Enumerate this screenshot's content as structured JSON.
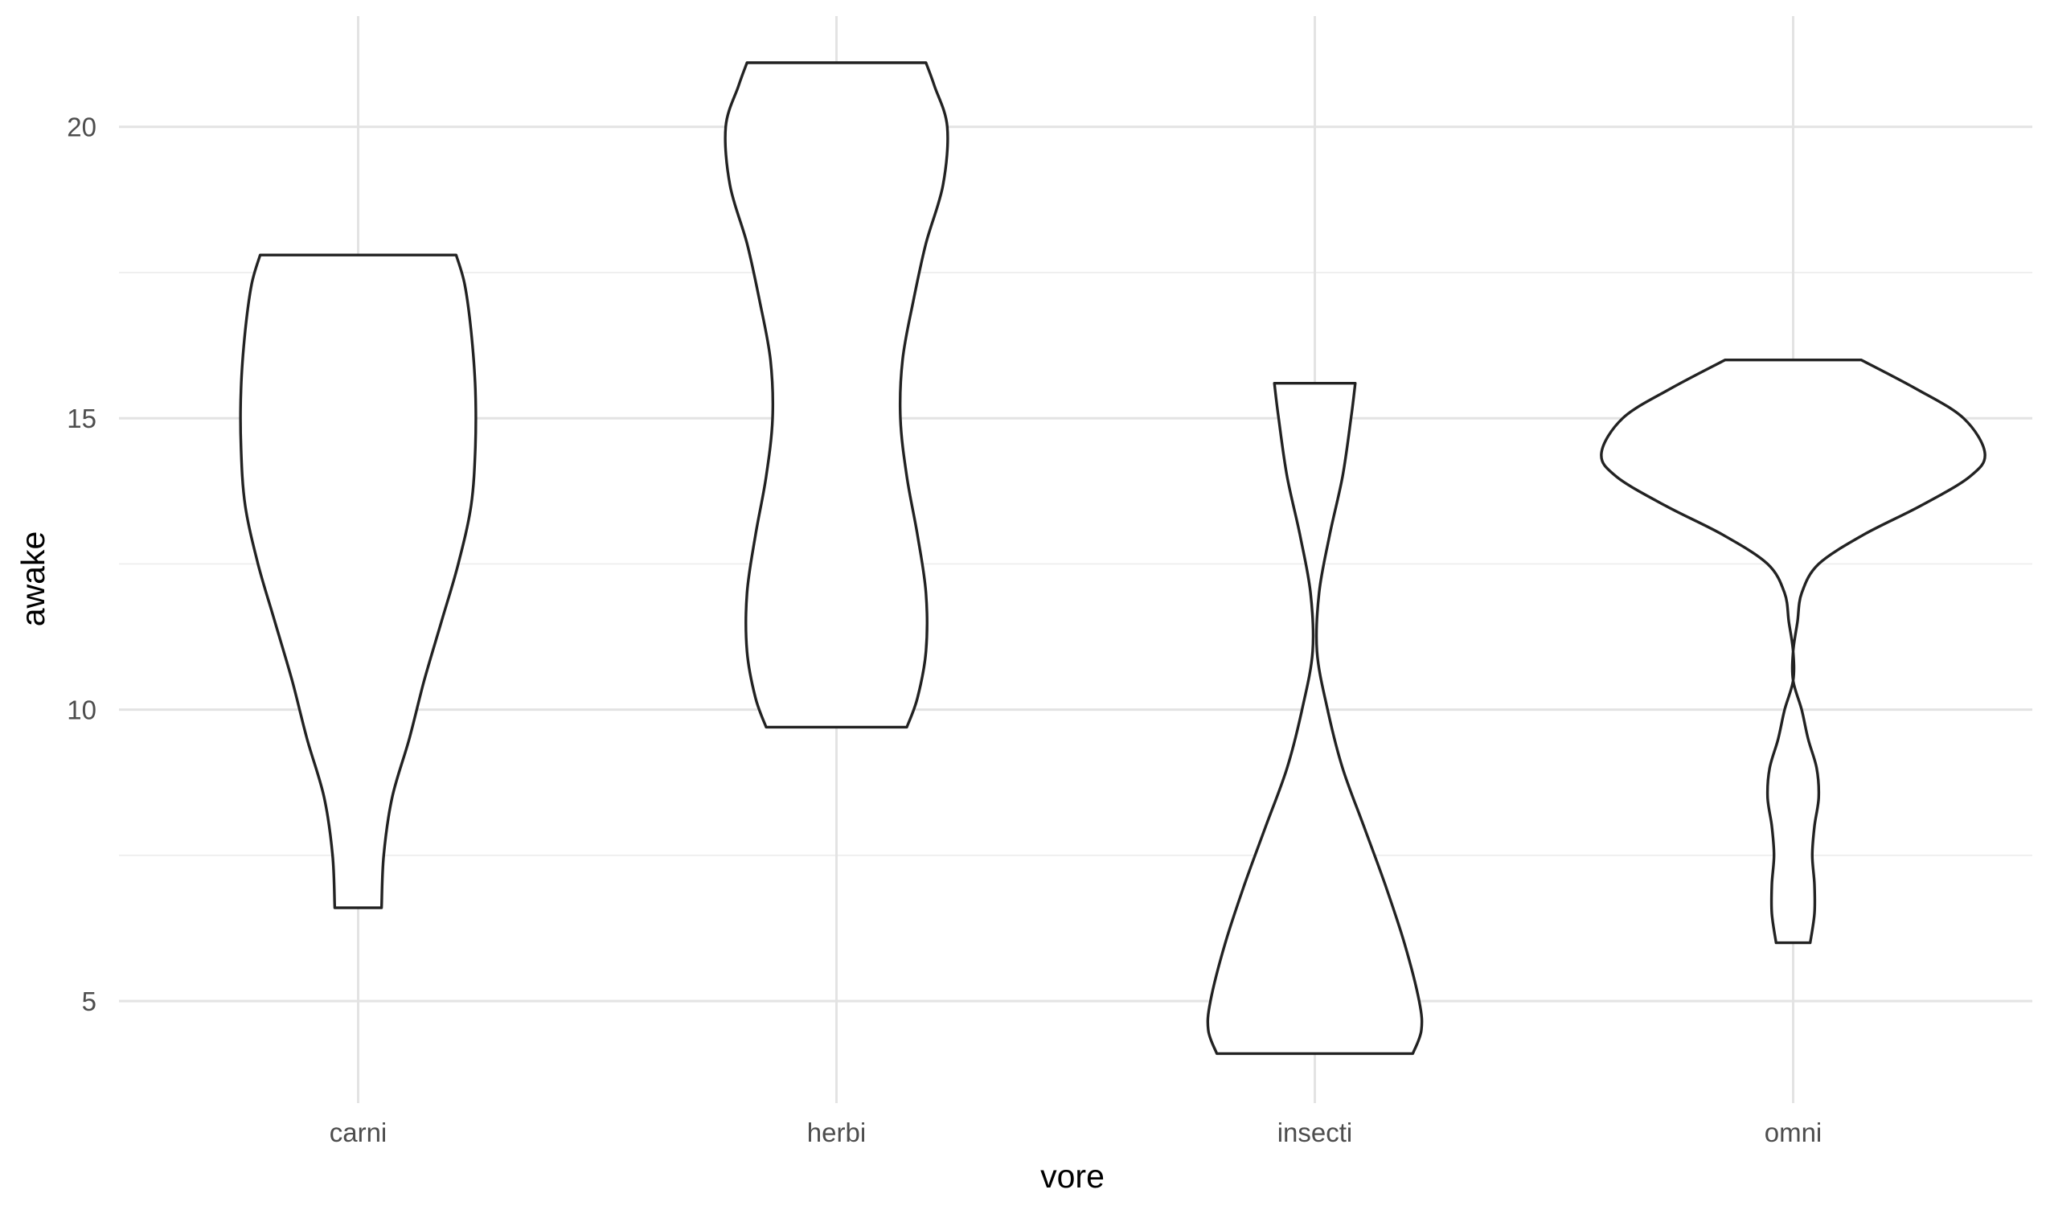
{
  "chart_data": {
    "type": "violin",
    "title": "",
    "xlabel": "vore",
    "ylabel": "awake",
    "categories": [
      "carni",
      "herbi",
      "insecti",
      "omni"
    ],
    "ylim": [
      3.25,
      21.9
    ],
    "yticks": [
      5,
      10,
      15,
      20
    ],
    "yticks_minor": [
      7.5,
      12.5,
      17.5
    ],
    "grid": true,
    "violins": [
      {
        "category": "carni",
        "min": 6.6,
        "max": 17.8,
        "density": [
          [
            6.6,
            0.11
          ],
          [
            7.5,
            0.12
          ],
          [
            8.5,
            0.16
          ],
          [
            9.5,
            0.24
          ],
          [
            10.5,
            0.31
          ],
          [
            11.5,
            0.39
          ],
          [
            12.5,
            0.47
          ],
          [
            13.5,
            0.53
          ],
          [
            14.5,
            0.55
          ],
          [
            15.5,
            0.55
          ],
          [
            16.5,
            0.53
          ],
          [
            17.3,
            0.5
          ],
          [
            17.8,
            0.46
          ]
        ]
      },
      {
        "category": "herbi",
        "min": 9.7,
        "max": 21.1,
        "density": [
          [
            9.7,
            0.33
          ],
          [
            10.2,
            0.38
          ],
          [
            11.0,
            0.42
          ],
          [
            12.0,
            0.42
          ],
          [
            13.0,
            0.38
          ],
          [
            14.0,
            0.33
          ],
          [
            15.0,
            0.3
          ],
          [
            16.0,
            0.31
          ],
          [
            17.0,
            0.36
          ],
          [
            18.0,
            0.42
          ],
          [
            19.0,
            0.5
          ],
          [
            20.0,
            0.52
          ],
          [
            20.7,
            0.46
          ],
          [
            21.1,
            0.42
          ]
        ]
      },
      {
        "category": "insecti",
        "min": 4.1,
        "max": 15.6,
        "density": [
          [
            4.1,
            0.46
          ],
          [
            4.5,
            0.5
          ],
          [
            5.0,
            0.49
          ],
          [
            6.0,
            0.42
          ],
          [
            7.0,
            0.33
          ],
          [
            8.0,
            0.23
          ],
          [
            9.0,
            0.13
          ],
          [
            10.0,
            0.06
          ],
          [
            11.0,
            0.01
          ],
          [
            12.0,
            0.02
          ],
          [
            13.0,
            0.07
          ],
          [
            14.0,
            0.13
          ],
          [
            15.0,
            0.17
          ],
          [
            15.6,
            0.19
          ]
        ]
      },
      {
        "category": "omni",
        "min": 6.0,
        "max": 16.0,
        "density": [
          [
            6.0,
            0.08
          ],
          [
            6.5,
            0.1
          ],
          [
            7.0,
            0.1
          ],
          [
            7.5,
            0.09
          ],
          [
            8.0,
            0.1
          ],
          [
            8.5,
            0.12
          ],
          [
            9.0,
            0.11
          ],
          [
            9.5,
            0.07
          ],
          [
            10.0,
            0.04
          ],
          [
            10.5,
            0.0
          ],
          [
            11.0,
            0.0
          ],
          [
            11.5,
            0.02
          ],
          [
            12.0,
            0.04
          ],
          [
            12.5,
            0.12
          ],
          [
            13.0,
            0.33
          ],
          [
            13.5,
            0.6
          ],
          [
            14.0,
            0.83
          ],
          [
            14.4,
            0.9
          ],
          [
            15.0,
            0.8
          ],
          [
            15.5,
            0.58
          ],
          [
            16.0,
            0.32
          ]
        ]
      }
    ]
  }
}
